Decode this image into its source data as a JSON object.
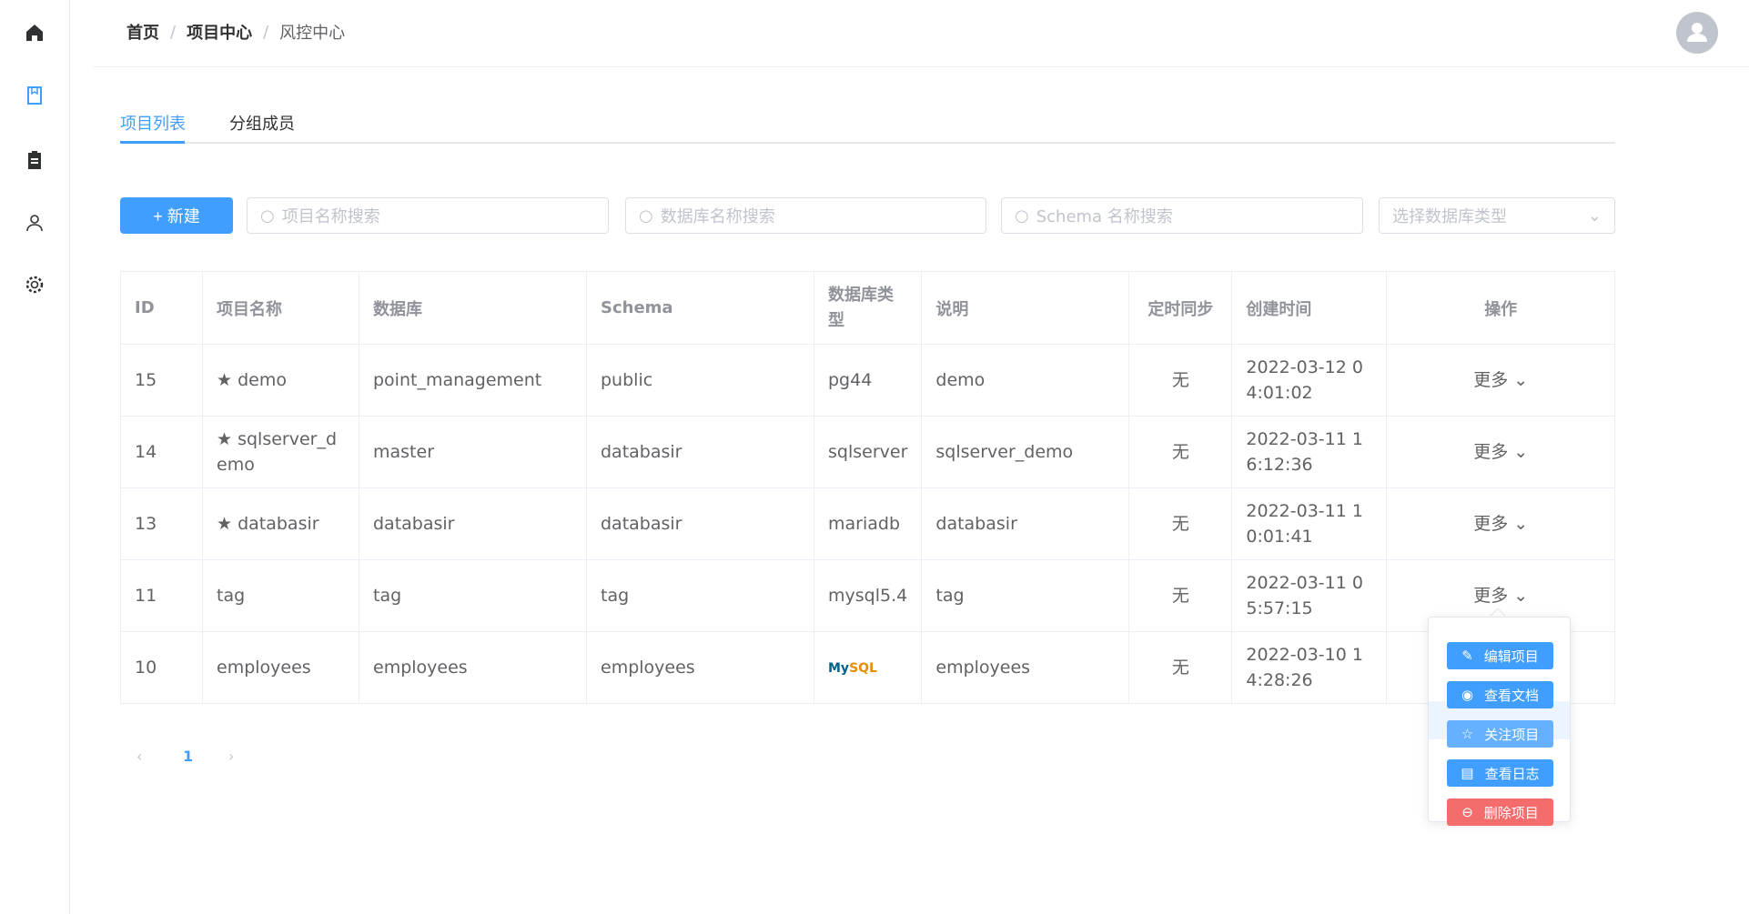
{
  "breadcrumb": [
    "首页",
    "项目中心",
    "风控中心"
  ],
  "tabs": [
    {
      "label": "项目列表",
      "active": true
    },
    {
      "label": "分组成员",
      "active": false
    }
  ],
  "toolbar": {
    "new_label": "+ 新建",
    "search_project": "项目名称搜索",
    "search_db": "数据库名称搜索",
    "search_schema": "Schema 名称搜索",
    "select_db_type": "选择数据库类型"
  },
  "table": {
    "headers": [
      "ID",
      "项目名称",
      "数据库",
      "Schema",
      "数据库类型",
      "说明",
      "定时同步",
      "创建时间",
      "操作"
    ],
    "rows": [
      {
        "id": "15",
        "name": "demo",
        "starred": true,
        "db": "point_management",
        "schema": "public",
        "type": "pg44",
        "desc": "demo",
        "sync": "无",
        "created": "2022-03-12 04:01:02",
        "op": "更多"
      },
      {
        "id": "14",
        "name": "sqlserver_demo",
        "starred": true,
        "db": "master",
        "schema": "databasir",
        "type": "sqlserver",
        "desc": "sqlserver_demo",
        "sync": "无",
        "created": "2022-03-11 16:12:36",
        "op": "更多"
      },
      {
        "id": "13",
        "name": "databasir",
        "starred": true,
        "db": "databasir",
        "schema": "databasir",
        "type": "mariadb",
        "desc": "databasir",
        "sync": "无",
        "created": "2022-03-11 10:01:41",
        "op": "更多"
      },
      {
        "id": "11",
        "name": "tag",
        "starred": false,
        "db": "tag",
        "schema": "tag",
        "type": "mysql5.4",
        "desc": "tag",
        "sync": "无",
        "created": "2022-03-11 05:57:15",
        "op": "更多"
      },
      {
        "id": "10",
        "name": "employees",
        "starred": false,
        "db": "employees",
        "schema": "employees",
        "type": "MySQL",
        "type_logo": true,
        "desc": "employees",
        "sync": "无",
        "created": "2022-03-10 14:28:26",
        "op": ""
      }
    ]
  },
  "pagination": {
    "current": "1"
  },
  "dropdown": [
    {
      "label": "编辑项目",
      "icon": "edit-icon"
    },
    {
      "label": "查看文档",
      "icon": "eye-icon"
    },
    {
      "label": "关注项目",
      "icon": "star-icon"
    },
    {
      "label": "查看日志",
      "icon": "document-icon"
    },
    {
      "label": "删除项目",
      "icon": "remove-icon"
    }
  ],
  "colors": {
    "primary": "#409eff",
    "danger": "#f56c6c"
  }
}
